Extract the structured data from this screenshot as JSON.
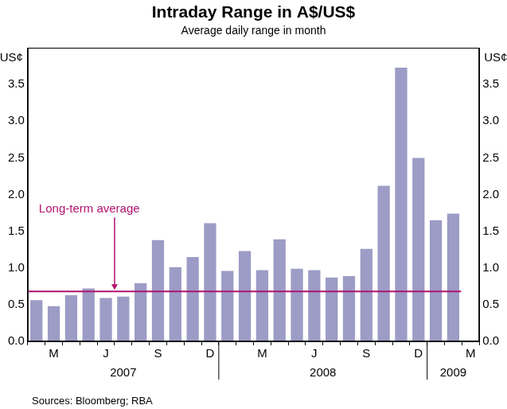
{
  "chart_data": {
    "type": "bar",
    "title": "Intraday Range in A$/US$",
    "subtitle": "Average daily range in month",
    "source": "Sources: Bloomberg; RBA",
    "ylabel": "US¢",
    "y2label": "US¢",
    "categories": [
      null,
      "M",
      null,
      null,
      "J",
      null,
      null,
      "S",
      null,
      null,
      "D",
      null,
      null,
      "M",
      null,
      null,
      "J",
      null,
      null,
      "S",
      null,
      null,
      "D",
      null,
      null,
      "M"
    ],
    "x_groups": [
      {
        "label": "2007",
        "from": 0,
        "to": 10
      },
      {
        "label": "2008",
        "from": 11,
        "to": 22
      },
      {
        "label": "2009",
        "from": 23,
        "to": 25
      }
    ],
    "values": [
      0.56,
      0.48,
      0.63,
      0.72,
      0.59,
      0.61,
      0.79,
      1.38,
      1.01,
      1.15,
      1.61,
      0.96,
      1.23,
      0.97,
      1.39,
      0.99,
      0.97,
      0.87,
      0.89,
      1.26,
      2.12,
      3.73,
      2.5,
      1.65,
      1.74,
      null
    ],
    "color": "#9c9cc6",
    "reference_line": {
      "label": "Long-term average",
      "value": 0.68,
      "color": "#b0126e"
    },
    "ylim": [
      0,
      4.0
    ],
    "yticks": [
      {
        "value": 0,
        "label": "0.0"
      },
      {
        "value": 0.5,
        "label": "0.5"
      },
      {
        "value": 1,
        "label": "1.0"
      },
      {
        "value": 1.5,
        "label": "1.5"
      },
      {
        "value": 2,
        "label": "2.0"
      },
      {
        "value": 2.5,
        "label": "2.5"
      },
      {
        "value": 3,
        "label": "3.0"
      },
      {
        "value": 3.5,
        "label": "3.5"
      }
    ],
    "y2lim": [
      0,
      4.0
    ],
    "y2ticks": [
      {
        "value": 0,
        "label": "0.0"
      },
      {
        "value": 0.5,
        "label": "0.5"
      },
      {
        "value": 1,
        "label": "1.0"
      },
      {
        "value": 1.5,
        "label": "1.5"
      },
      {
        "value": 2,
        "label": "2.0"
      },
      {
        "value": 2.5,
        "label": "2.5"
      },
      {
        "value": 3,
        "label": "3.0"
      },
      {
        "value": 3.5,
        "label": "3.5"
      }
    ],
    "grid": false
  }
}
